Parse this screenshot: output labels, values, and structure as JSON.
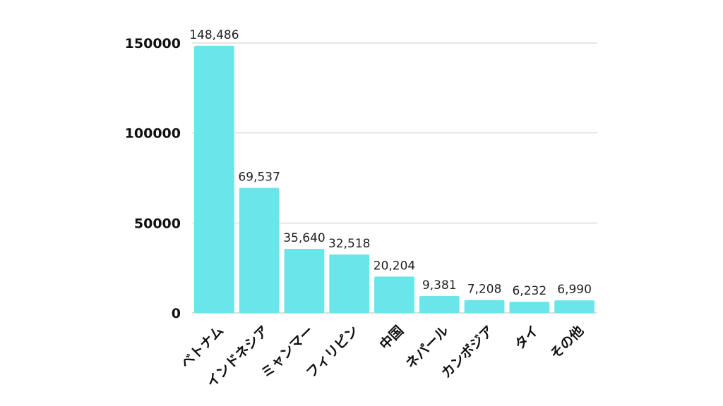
{
  "chart_data": {
    "type": "bar",
    "title": "",
    "xlabel": "",
    "ylabel": "",
    "categories": [
      "ベトナム",
      "インドネシア",
      "ミャンマー",
      "フィリピン",
      "中国",
      "ネパール",
      "カンボジア",
      "タイ",
      "その他"
    ],
    "values": [
      148486,
      69537,
      35640,
      32518,
      20204,
      9381,
      7208,
      6232,
      6990
    ],
    "data_labels": [
      "148,486",
      "69,537",
      "35,640",
      "32,518",
      "20,204",
      "9,381",
      "7,208",
      "6,232",
      "6,990"
    ],
    "ylim": [
      0,
      150000
    ],
    "yticks": [
      0,
      50000,
      100000,
      150000
    ],
    "ytick_labels": [
      "0",
      "50000",
      "100000",
      "150000"
    ],
    "grid": true,
    "legend": "none",
    "bar_color": "#6ae6ea"
  }
}
